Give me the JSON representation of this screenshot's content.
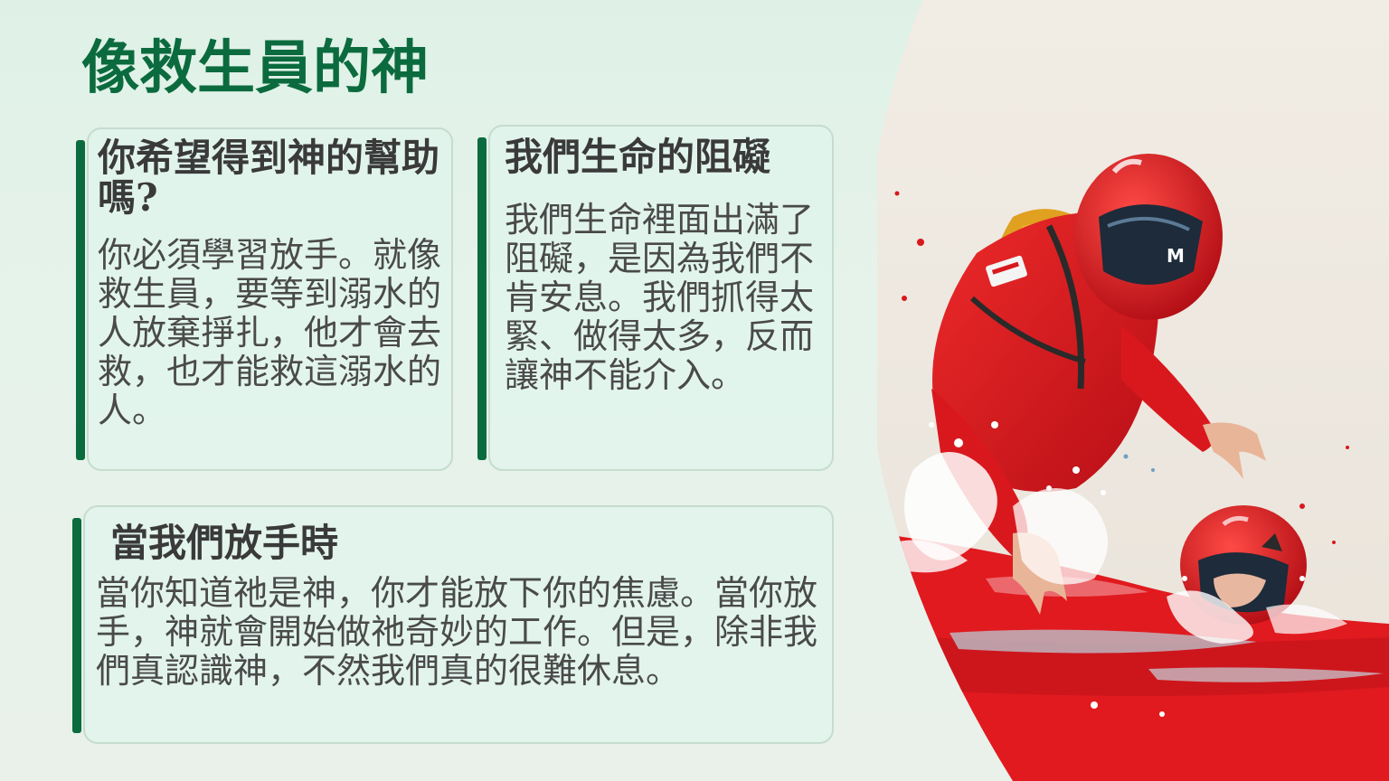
{
  "slide": {
    "title": "像救生員的神"
  },
  "cards": [
    {
      "title": "你希望得到神的幫助嗎?",
      "body": "你必須學習放手。就像救生員，要等到溺水的人放棄掙扎，他才會去救，也才能救這溺水的人。"
    },
    {
      "title": "我們生命的阻礙",
      "body": "我們生命裡面出滿了阻礙，是因為我們不肯安息。我們抓得太緊、做得太多，反而讓神不能介入。"
    },
    {
      "title": "當我們放手時",
      "body": "當你知道祂是神，你才能放下你的焦慮。當你放手，神就會開始做祂奇妙的工作。但是，除非我們真認識神，不然我們真的很難休息。"
    }
  ],
  "image": {
    "subject": "lifeguard-rescuer-in-red-suit-reaching-for-swimmer",
    "colors": {
      "suit": "#d9181e",
      "water": "#e11a1f",
      "backpack": "#e0a020",
      "visor": "#1d2b3a",
      "background": "#efe9e1"
    }
  },
  "theme": {
    "title_color": "#0b6b3e",
    "accent_color": "#0a6b3f",
    "text_color": "#4a4a4a",
    "heading_color": "#3a3a3a"
  }
}
